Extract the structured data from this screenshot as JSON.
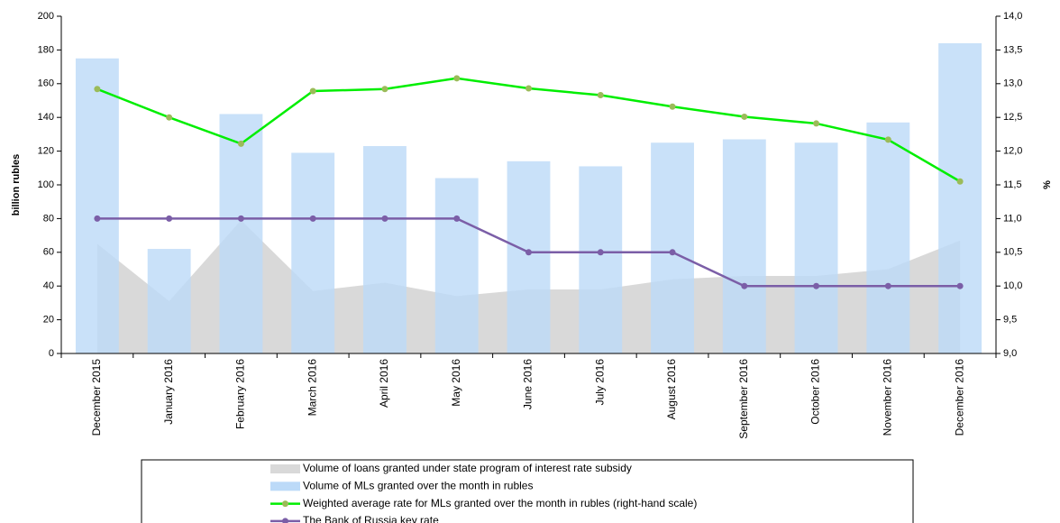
{
  "chart_data": {
    "type": "combo",
    "y_label": "billion rubles",
    "y2_label": "%",
    "categories": [
      "December 2015",
      "January 2016",
      "February 2016",
      "March 2016",
      "April 2016",
      "May 2016",
      "June 2016",
      "July 2016",
      "August 2016",
      "September 2016",
      "October 2016",
      "November 2016",
      "December 2016"
    ],
    "ylim": [
      0,
      200
    ],
    "yticks": [
      0,
      20,
      40,
      60,
      80,
      100,
      120,
      140,
      160,
      180,
      200
    ],
    "y2lim": [
      9,
      14
    ],
    "y2ticks": [
      {
        "value": 9,
        "label": "9,0"
      },
      {
        "value": 9.5,
        "label": "9,5"
      },
      {
        "value": 10,
        "label": "10,0"
      },
      {
        "value": 10.5,
        "label": "10,5"
      },
      {
        "value": 11,
        "label": "11,0"
      },
      {
        "value": 11.5,
        "label": "11,5"
      },
      {
        "value": 12,
        "label": "12,0"
      },
      {
        "value": 12.5,
        "label": "12,5"
      },
      {
        "value": 13,
        "label": "13,0"
      },
      {
        "value": 13.5,
        "label": "13,5"
      },
      {
        "value": 14,
        "label": "14,0"
      }
    ],
    "series": [
      {
        "name": "Volume of loans granted under state program of interest rate subsidy",
        "type": "area",
        "color": "#d9d9d9",
        "values": [
          65,
          31,
          79,
          37,
          42,
          34,
          38,
          38,
          44,
          46,
          46,
          50,
          67
        ]
      },
      {
        "name": "Volume of MLs granted over the month in rubles",
        "type": "bar",
        "color": "#bcdaf8",
        "values": [
          175,
          62,
          142,
          119,
          123,
          104,
          114,
          111,
          125,
          127,
          125,
          137,
          184
        ]
      },
      {
        "name": "Weighted average rate for MLs granted over the month in rubles (right-hand scale)",
        "type": "line",
        "axis": "y2",
        "color": "#00ee00",
        "marker_color": "#9bbb59",
        "values": [
          12.92,
          12.5,
          12.11,
          12.89,
          12.92,
          13.08,
          12.93,
          12.83,
          12.66,
          12.51,
          12.41,
          12.17,
          11.55
        ]
      },
      {
        "name": "The Bank of Russia key rate",
        "type": "line",
        "axis": "y2",
        "color": "#7b5ea7",
        "marker_color": "#7b5ea7",
        "values": [
          11,
          11,
          11,
          11,
          11,
          11,
          10.5,
          10.5,
          10.5,
          10,
          10,
          10,
          10
        ]
      }
    ]
  }
}
